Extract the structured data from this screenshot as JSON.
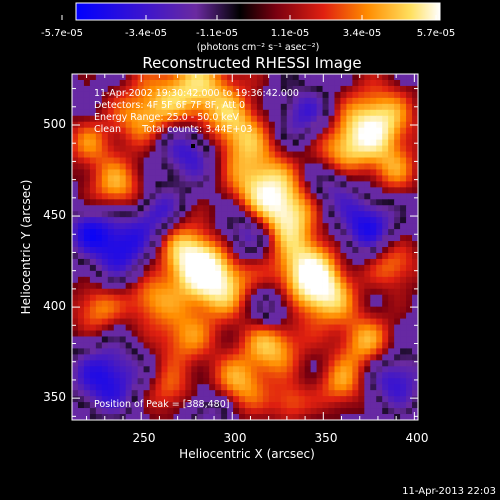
{
  "colorbar": {
    "tick_labels": [
      "-5.7e-05",
      "-3.4e-05",
      "-1.1e-05",
      "1.1e-05",
      "3.4e-05",
      "5.7e-05"
    ],
    "unit_label": "(photons cm⁻² s⁻¹ asec⁻²)",
    "colors": [
      "#0000ff",
      "#5a1fb0",
      "#000000",
      "#b0002a",
      "#ff6a00",
      "#ffd040",
      "#ffffff"
    ]
  },
  "plot": {
    "title": "Reconstructed RHESSI Image",
    "xlabel": "Heliocentric X (arcsec)",
    "ylabel": "Heliocentric Y (arcsec)",
    "x_ticks": [
      "250",
      "300",
      "350",
      "400"
    ],
    "y_ticks": [
      "350",
      "400",
      "450",
      "500"
    ],
    "xlim": [
      212,
      402
    ],
    "ylim": [
      338,
      528
    ]
  },
  "annotations": {
    "time_range": "11-Apr-2002 19:30:42.000 to 19:36:42.000",
    "detectors": "Detectors: 4F 5F 6F 7F 8F, Att 0",
    "energy_range": "Energy Range: 25.0 - 50.0 keV",
    "clean": "Clean       Total counts: 3.44E+03",
    "peak": "Position of Peak = [388,480]"
  },
  "footer": {
    "timestamp": "11-Apr-2013 22:03"
  }
}
